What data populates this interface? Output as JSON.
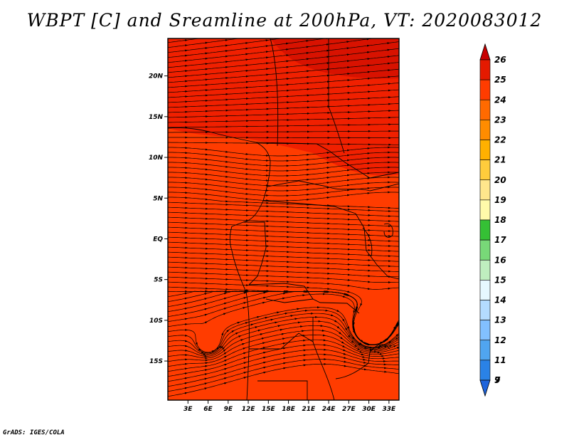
{
  "map": {
    "title": "WBPT [C] and Sreamline at 200hPa, VT: 2020083012",
    "credit": "GrADS: IGES/COLA",
    "lat_labels": [
      "20N",
      "15N",
      "10N",
      "5N",
      "EQ",
      "5S",
      "10S",
      "15S"
    ],
    "lat_values": [
      20,
      15,
      10,
      5,
      0,
      -5,
      -10,
      -15
    ],
    "lon_labels": [
      "3E",
      "6E",
      "9E",
      "12E",
      "15E",
      "18E",
      "21E",
      "24E",
      "27E",
      "30E",
      "33E"
    ],
    "lon_values": [
      3,
      6,
      9,
      12,
      15,
      18,
      21,
      24,
      27,
      30,
      33
    ],
    "lon_range": [
      0,
      34.5
    ],
    "lat_range": [
      -19.8,
      24.6
    ],
    "field_colors": {
      "base": "#ff3c00",
      "warm": "#f02000",
      "warmest": "#d81200"
    }
  },
  "colorbar": {
    "levels": [
      {
        "label": "26",
        "color": "#c80000"
      },
      {
        "label": "25",
        "color": "#e41a00"
      },
      {
        "label": "24",
        "color": "#ff3c00"
      },
      {
        "label": "23",
        "color": "#ff6a00"
      },
      {
        "label": "22",
        "color": "#ff8c00"
      },
      {
        "label": "21",
        "color": "#ffb000"
      },
      {
        "label": "20",
        "color": "#ffcc3c"
      },
      {
        "label": "19",
        "color": "#ffe68c"
      },
      {
        "label": "18",
        "color": "#fffaaa"
      },
      {
        "label": "17",
        "color": "#35c035"
      },
      {
        "label": "16",
        "color": "#78d878"
      },
      {
        "label": "15",
        "color": "#bfeebf"
      },
      {
        "label": "14",
        "color": "#e6f8ff"
      },
      {
        "label": "13",
        "color": "#b4dcff"
      },
      {
        "label": "12",
        "color": "#82c0ff"
      },
      {
        "label": "11",
        "color": "#50a5f0"
      },
      {
        "label": "9",
        "color": "#2a82e6"
      },
      {
        "label": "7",
        "color": "#1e64dc"
      }
    ]
  }
}
